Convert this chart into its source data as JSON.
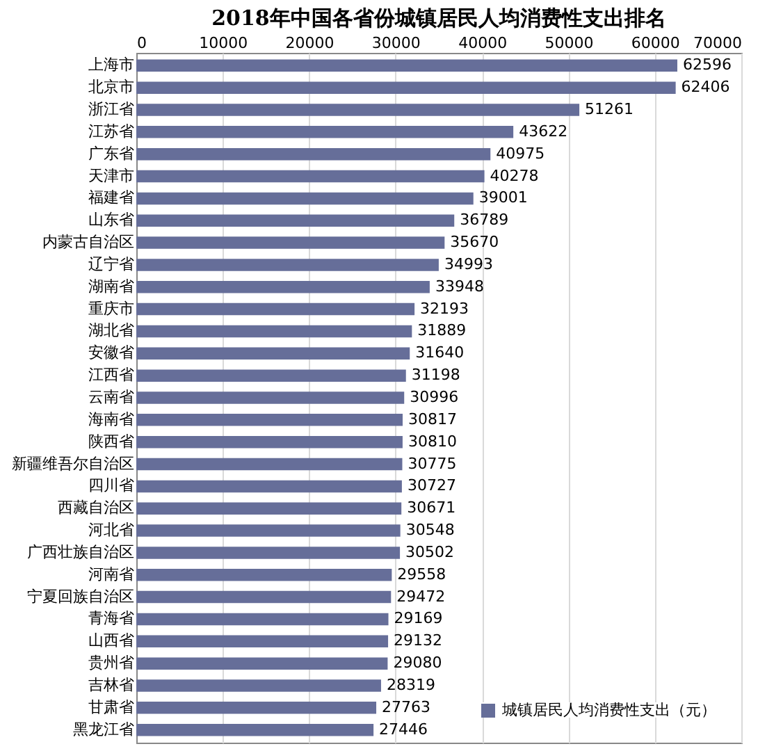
{
  "chart_data": {
    "type": "bar",
    "orientation": "horizontal",
    "title": "2018年中国各省份城镇居民人均消费性支出排名",
    "categories": [
      "上海市",
      "北京市",
      "浙江省",
      "江苏省",
      "广东省",
      "天津市",
      "福建省",
      "山东省",
      "内蒙古自治区",
      "辽宁省",
      "湖南省",
      "重庆市",
      "湖北省",
      "安徽省",
      "江西省",
      "云南省",
      "海南省",
      "陕西省",
      "新疆维吾尔自治区",
      "四川省",
      "西藏自治区",
      "河北省",
      "广西壮族自治区",
      "河南省",
      "宁夏回族自治区",
      "青海省",
      "山西省",
      "贵州省",
      "吉林省",
      "甘肃省",
      "黑龙江省"
    ],
    "series": [
      {
        "name": "城镇居民人均消费性支出（元）",
        "color": "#666e99",
        "values": [
          62596,
          62406,
          51261,
          43622,
          40975,
          40278,
          39001,
          36789,
          35670,
          34993,
          33948,
          32193,
          31889,
          31640,
          31198,
          30996,
          30817,
          30810,
          30775,
          30727,
          30671,
          30548,
          30502,
          29558,
          29472,
          29169,
          29132,
          29080,
          28319,
          27763,
          27446
        ]
      }
    ],
    "xlim": [
      0,
      70000
    ],
    "xticks": [
      0,
      10000,
      20000,
      30000,
      40000,
      50000,
      60000,
      70000
    ],
    "grid": "x",
    "legend": "bottom right",
    "data_labels": true
  }
}
